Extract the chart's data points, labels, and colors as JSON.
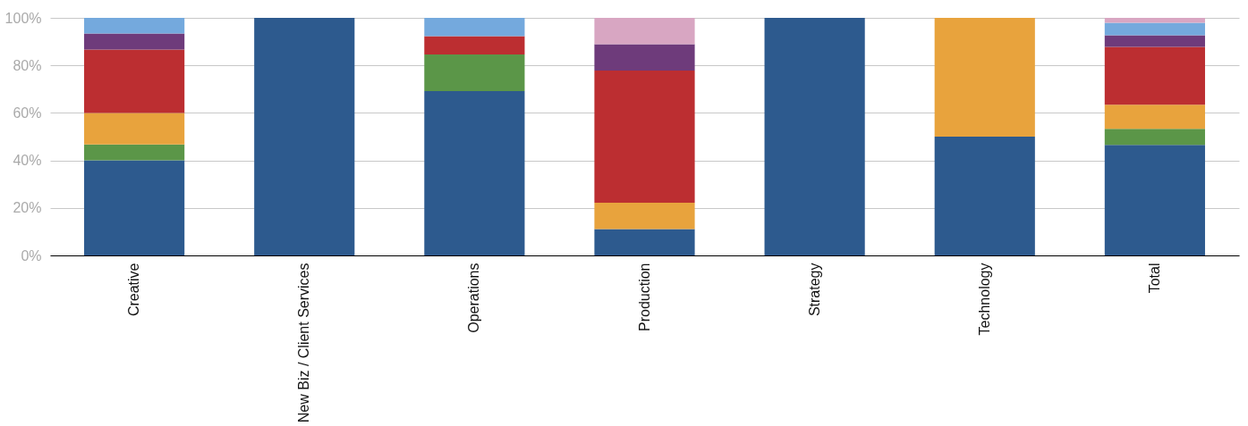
{
  "chart_data": {
    "type": "bar",
    "stacked": true,
    "categories": [
      "Creative",
      "New Biz / Client Services",
      "Operations",
      "Production",
      "Strategy",
      "Technology",
      "Total"
    ],
    "series": [
      {
        "color": "#2d5a8e",
        "values": [
          40,
          100,
          69.2,
          11.1,
          100,
          50,
          46.5
        ]
      },
      {
        "color": "#5b9648",
        "values": [
          6.7,
          null,
          15.4,
          null,
          null,
          null,
          6.8
        ]
      },
      {
        "color": "#e8a33d",
        "values": [
          13.3,
          null,
          null,
          11.1,
          null,
          50,
          10.1
        ]
      },
      {
        "color": "#bc2e31",
        "values": [
          26.7,
          null,
          7.7,
          55.6,
          null,
          null,
          24.4
        ]
      },
      {
        "color": "#6e3b7b",
        "values": [
          6.7,
          null,
          null,
          11.1,
          null,
          null,
          4.9
        ]
      },
      {
        "color": "#74a9dd",
        "values": [
          6.6,
          null,
          7.7,
          null,
          null,
          null,
          5.2
        ]
      },
      {
        "color": "#d8a6c2",
        "values": [
          null,
          null,
          null,
          11.1,
          null,
          null,
          2.1
        ]
      }
    ],
    "ylim": [
      0,
      100
    ],
    "yticks": [
      {
        "value": 0,
        "label": "0%"
      },
      {
        "value": 20,
        "label": "20%"
      },
      {
        "value": 40,
        "label": "40%"
      },
      {
        "value": 60,
        "label": "60%"
      },
      {
        "value": 80,
        "label": "80%"
      },
      {
        "value": 100,
        "label": "100%"
      }
    ],
    "grid": "y",
    "legend": false
  }
}
